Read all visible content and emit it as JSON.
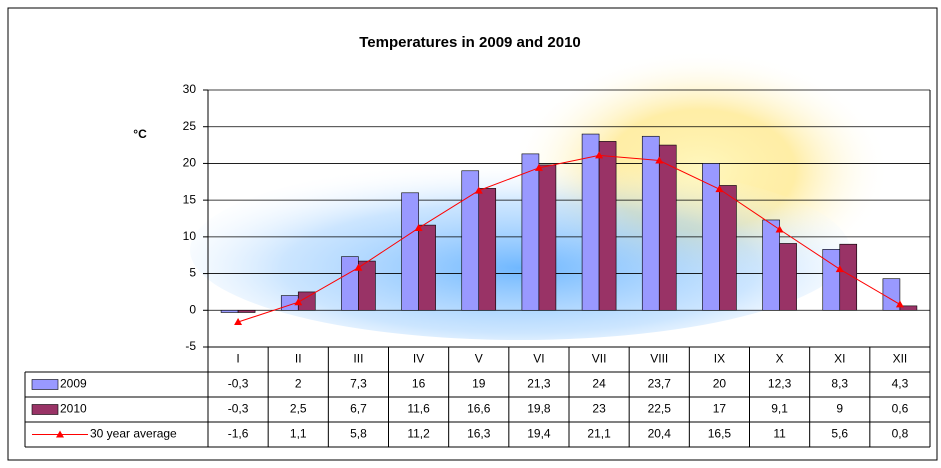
{
  "chart_data": {
    "type": "bar",
    "title": "Temperatures in 2009 and 2010",
    "y_label": "°C",
    "categories": [
      "I",
      "II",
      "III",
      "IV",
      "V",
      "VI",
      "VII",
      "VIII",
      "IX",
      "X",
      "XI",
      "XII"
    ],
    "series": [
      {
        "name": "2009",
        "color": "#9999ff",
        "type": "bar",
        "values": [
          -0.3,
          2,
          7.3,
          16,
          19,
          21.3,
          24,
          23.7,
          20,
          12.3,
          8.3,
          4.3
        ],
        "value_labels": [
          "-0,3",
          "2",
          "7,3",
          "16",
          "19",
          "21,3",
          "24",
          "23,7",
          "20",
          "12,3",
          "8,3",
          "4,3"
        ]
      },
      {
        "name": "2010",
        "color": "#993366",
        "type": "bar",
        "values": [
          -0.3,
          2.5,
          6.7,
          11.6,
          16.6,
          19.8,
          23,
          22.5,
          17,
          9.1,
          9,
          0.6
        ],
        "value_labels": [
          "-0,3",
          "2,5",
          "6,7",
          "11,6",
          "16,6",
          "19,8",
          "23",
          "22,5",
          "17",
          "9,1",
          "9",
          "0,6"
        ]
      },
      {
        "name": "30 year average",
        "color": "#ff0000",
        "type": "line",
        "values": [
          -1.6,
          1.1,
          5.8,
          11.2,
          16.3,
          19.4,
          21.1,
          20.4,
          16.5,
          11,
          5.6,
          0.8
        ],
        "value_labels": [
          "-1,6",
          "1,1",
          "5,8",
          "11,2",
          "16,3",
          "19,4",
          "21,1",
          "20,4",
          "16,5",
          "11",
          "5,6",
          "0,8"
        ]
      }
    ],
    "ylim": [
      -5,
      30
    ],
    "yticks": [
      -5,
      0,
      5,
      10,
      15,
      20,
      25,
      30
    ],
    "grid": true
  }
}
